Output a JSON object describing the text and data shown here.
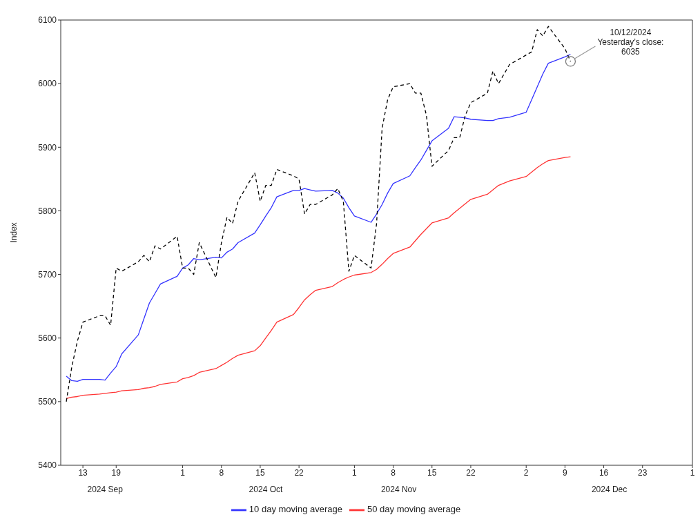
{
  "chart_data": {
    "type": "line",
    "ylabel": "Index",
    "x": [
      "2024-09-10",
      "2024-09-11",
      "2024-09-12",
      "2024-09-13",
      "2024-09-16",
      "2024-09-17",
      "2024-09-18",
      "2024-09-19",
      "2024-09-20",
      "2024-09-23",
      "2024-09-24",
      "2024-09-25",
      "2024-09-26",
      "2024-09-27",
      "2024-09-30",
      "2024-10-01",
      "2024-10-02",
      "2024-10-03",
      "2024-10-04",
      "2024-10-07",
      "2024-10-08",
      "2024-10-09",
      "2024-10-10",
      "2024-10-11",
      "2024-10-14",
      "2024-10-15",
      "2024-10-16",
      "2024-10-17",
      "2024-10-18",
      "2024-10-21",
      "2024-10-22",
      "2024-10-23",
      "2024-10-24",
      "2024-10-25",
      "2024-10-28",
      "2024-10-29",
      "2024-10-30",
      "2024-10-31",
      "2024-11-01",
      "2024-11-04",
      "2024-11-05",
      "2024-11-06",
      "2024-11-07",
      "2024-11-08",
      "2024-11-11",
      "2024-11-12",
      "2024-11-13",
      "2024-11-14",
      "2024-11-15",
      "2024-11-18",
      "2024-11-19",
      "2024-11-20",
      "2024-11-21",
      "2024-11-22",
      "2024-11-25",
      "2024-11-26",
      "2024-11-27",
      "2024-11-29",
      "2024-12-02",
      "2024-12-03",
      "2024-12-04",
      "2024-12-05",
      "2024-12-06",
      "2024-12-09",
      "2024-12-10"
    ],
    "series": [
      {
        "name": "10 day moving average",
        "color": "#3333ff",
        "line_style": "solid",
        "values": [
          5540,
          5533,
          5532,
          5535,
          5535,
          5534,
          5545,
          5555,
          5575,
          5605,
          5630,
          5655,
          5670,
          5685,
          5697,
          5710,
          5715,
          5725,
          5723,
          5727,
          5726,
          5735,
          5740,
          5750,
          5765,
          5778,
          5792,
          5805,
          5822,
          5832,
          5832,
          5835,
          5833,
          5831,
          5832,
          5828,
          5820,
          5805,
          5792,
          5782,
          5795,
          5810,
          5828,
          5843,
          5855,
          5868,
          5880,
          5895,
          5910,
          5930,
          5948,
          5947,
          5946,
          5944,
          5942,
          5942,
          5945,
          5947,
          5955,
          5975,
          5995,
          6015,
          6032,
          6042,
          6046
        ]
      },
      {
        "name": "50 day moving average",
        "color": "#ff3333",
        "line_style": "solid",
        "values": [
          5505,
          5507,
          5508,
          5510,
          5512,
          5513,
          5514,
          5515,
          5517,
          5519,
          5521,
          5522,
          5524,
          5527,
          5531,
          5536,
          5538,
          5541,
          5546,
          5552,
          5557,
          5562,
          5568,
          5573,
          5580,
          5588,
          5600,
          5612,
          5625,
          5637,
          5648,
          5660,
          5668,
          5675,
          5681,
          5687,
          5692,
          5696,
          5699,
          5703,
          5708,
          5716,
          5725,
          5733,
          5743,
          5753,
          5763,
          5772,
          5781,
          5789,
          5797,
          5804,
          5811,
          5818,
          5826,
          5833,
          5840,
          5847,
          5854,
          5861,
          5868,
          5874,
          5879,
          5884,
          5885
        ]
      },
      {
        "color": "#000000",
        "line_style": "dashed",
        "values": [
          5500,
          5555,
          5595,
          5625,
          5635,
          5635,
          5620,
          5710,
          5705,
          5720,
          5730,
          5720,
          5745,
          5740,
          5760,
          5710,
          5710,
          5700,
          5750,
          5695,
          5750,
          5790,
          5780,
          5815,
          5860,
          5815,
          5840,
          5840,
          5865,
          5855,
          5850,
          5795,
          5810,
          5810,
          5825,
          5835,
          5815,
          5705,
          5730,
          5710,
          5780,
          5930,
          5975,
          5995,
          6000,
          5985,
          5985,
          5950,
          5870,
          5895,
          5915,
          5915,
          5950,
          5970,
          5985,
          6020,
          6000,
          6030,
          6045,
          6050,
          6085,
          6075,
          6090,
          6055,
          6035
        ]
      }
    ],
    "xlim": [
      "2024-09-09",
      "2025-01-01"
    ],
    "xticks": [
      {
        "value": "2024-09-13",
        "label": "13"
      },
      {
        "value": "2024-09-19",
        "label": "19"
      },
      {
        "value": "2024-10-01",
        "label": "1"
      },
      {
        "value": "2024-10-08",
        "label": "8"
      },
      {
        "value": "2024-10-15",
        "label": "15"
      },
      {
        "value": "2024-10-22",
        "label": "22"
      },
      {
        "value": "2024-11-01",
        "label": "1"
      },
      {
        "value": "2024-11-08",
        "label": "8"
      },
      {
        "value": "2024-11-15",
        "label": "15"
      },
      {
        "value": "2024-11-22",
        "label": "22"
      },
      {
        "value": "2024-12-02",
        "label": "2"
      },
      {
        "value": "2024-12-09",
        "label": "9"
      },
      {
        "value": "2024-12-16",
        "label": "16"
      },
      {
        "value": "2024-12-23",
        "label": "23"
      },
      {
        "value": "2025-01-01",
        "label": "1"
      }
    ],
    "x2lim": [
      "2024-09-09",
      "2025-01-01"
    ],
    "x2ticks": [
      {
        "value": "2024-09-17",
        "label": "2024 Sep"
      },
      {
        "value": "2024-10-16",
        "label": "2024 Oct"
      },
      {
        "value": "2024-11-09",
        "label": "2024 Nov"
      },
      {
        "value": "2024-12-17",
        "label": "2024 Dec"
      }
    ],
    "ylim": [
      5400,
      6100
    ],
    "yticks": [
      5400,
      5500,
      5600,
      5700,
      5800,
      5900,
      6000,
      6100
    ],
    "grid": false,
    "legend": "bottom",
    "marker": "none",
    "annotations": [
      {
        "text": "10/12/2024\nYesterday’s close:\n6035",
        "x": "2024-12-10",
        "y": 6035
      }
    ]
  }
}
